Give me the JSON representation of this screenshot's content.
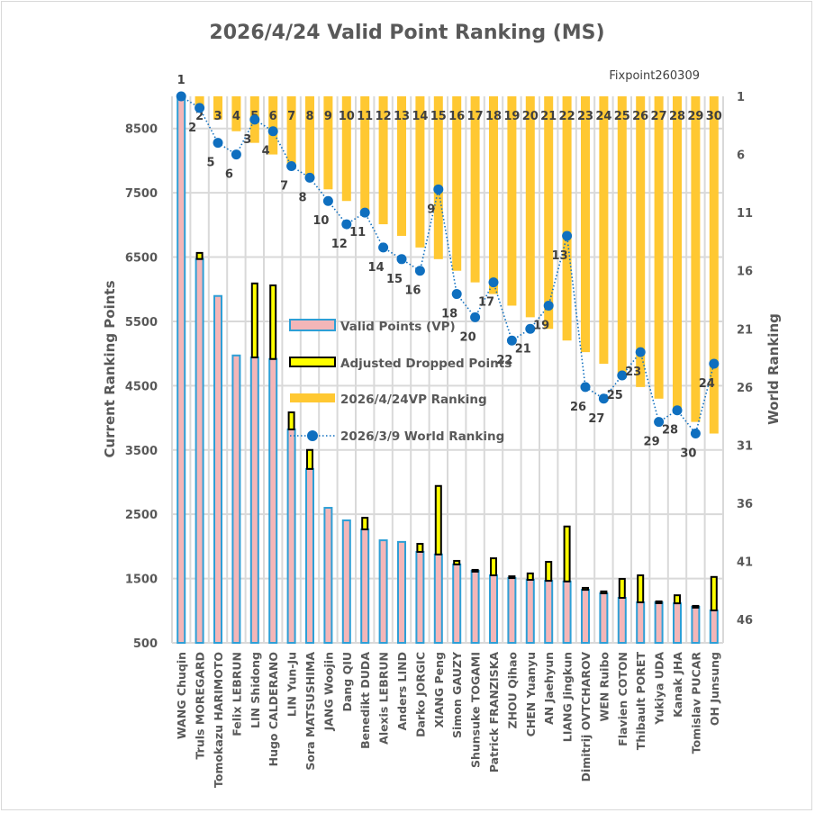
{
  "chart_data": {
    "type": "bar",
    "title": "2026/4/24  Valid Point Ranking (MS)",
    "annotation": "Fixpoint260309",
    "ylabel": "Current Ranking Points",
    "y2label": "World Ranking",
    "ylim": [
      500,
      9000
    ],
    "yticks": [
      500,
      1500,
      2500,
      3500,
      4500,
      5500,
      6500,
      7500,
      8500
    ],
    "y2lim": [
      1,
      48
    ],
    "y2reversed": true,
    "y2ticks": [
      1,
      6,
      11,
      16,
      21,
      26,
      31,
      36,
      41,
      46
    ],
    "grid": true,
    "legend_position": "center",
    "categories": [
      "WANG Chuqin",
      "Truls MOREGARD",
      "Tomokazu HARIMOTO",
      "Felix LEBRUN",
      "LIN Shidong",
      "Hugo CALDERANO",
      "LIN Yun-Ju",
      "Sora MATSUSHIMA",
      "JANG Woojin",
      "Dang QIU",
      "Benedikt DUDA",
      "Alexis LEBRUN",
      "Anders LIND",
      "Darko JORGIC",
      "XIANG Peng",
      "Simon GAUZY",
      "Shunsuke TOGAMI",
      "Patrick FRANZISKA",
      "ZHOU Qihao",
      "CHEN Yuanyu",
      "AN Jaehyun",
      "LIANG Jingkun",
      "Dimitrij OVTCHAROV",
      "WEN Ruibo",
      "Flavien COTON",
      "Thibault PORET",
      "Yukiya UDA",
      "Kanak JHA",
      "Tomislav PUCAR",
      "OH Junsung"
    ],
    "series": [
      {
        "name": "Valid Points (VP)",
        "axis": "left",
        "kind": "bar",
        "values": [
          9000,
          6470,
          5895,
          4970,
          4940,
          4915,
          3820,
          3205,
          2600,
          2405,
          2265,
          2095,
          2070,
          1915,
          1875,
          1720,
          1620,
          1550,
          1510,
          1480,
          1465,
          1455,
          1325,
          1270,
          1200,
          1130,
          1130,
          1115,
          1060,
          1005
        ]
      },
      {
        "name": "Adjusted Dropped Points",
        "axis": "left",
        "kind": "stacked-bar",
        "values": [
          0,
          95,
          0,
          0,
          1150,
          1145,
          265,
          295,
          0,
          0,
          180,
          0,
          0,
          125,
          1065,
          55,
          15,
          265,
          25,
          100,
          295,
          855,
          30,
          30,
          295,
          420,
          15,
          125,
          15,
          520
        ]
      },
      {
        "name": "2026/4/24VP Ranking",
        "axis": "right",
        "kind": "bar-from-top",
        "values": [
          1,
          2,
          3,
          4,
          5,
          6,
          7,
          8,
          9,
          10,
          11,
          12,
          13,
          14,
          15,
          16,
          17,
          18,
          19,
          20,
          21,
          22,
          23,
          24,
          25,
          26,
          27,
          28,
          29,
          30
        ]
      },
      {
        "name": "2026/3/9 World Ranking",
        "axis": "right",
        "kind": "line-dotted-markers",
        "values": [
          1,
          2,
          5,
          6,
          3,
          4,
          7,
          8,
          10,
          12,
          11,
          14,
          15,
          16,
          9,
          18,
          20,
          17,
          22,
          21,
          19,
          13,
          26,
          27,
          25,
          23,
          29,
          28,
          30,
          24
        ]
      }
    ]
  },
  "colors": {
    "vp_fill": "#f4b6b8",
    "vp_border": "#2e9fd6",
    "dropped_fill": "#ffff00",
    "dropped_border": "#000000",
    "vp_rank": "#ffc832",
    "world_rank": "#0f6fbf",
    "grid": "#d9d9d9",
    "text": "#595959"
  }
}
